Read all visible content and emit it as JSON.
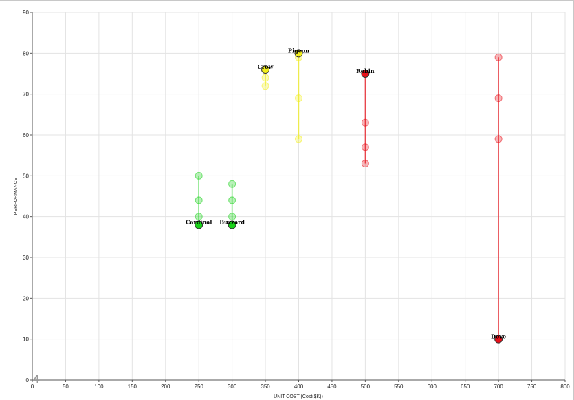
{
  "chart_data": {
    "type": "scatter",
    "title": "",
    "xlabel": "UNIT COST (Cost($K))",
    "ylabel": "PERFORMANCE",
    "xlim": [
      0,
      800
    ],
    "ylim": [
      0,
      90
    ],
    "xticks": [
      0,
      50,
      100,
      150,
      200,
      250,
      300,
      350,
      400,
      450,
      500,
      550,
      600,
      650,
      700,
      750,
      800
    ],
    "yticks": [
      0,
      10,
      20,
      30,
      40,
      50,
      60,
      70,
      80,
      90
    ],
    "grid": true,
    "legend": "none",
    "corner_mark": "4",
    "colors": {
      "green": "#19d219",
      "yellow": "#f2ee1c",
      "red": "#e8101a"
    },
    "series": [
      {
        "name": "Cardinal",
        "color": "green",
        "x": 250,
        "current": 38,
        "history": [
          50,
          44,
          40
        ],
        "line": [
          38,
          50
        ]
      },
      {
        "name": "Buzzard",
        "color": "green",
        "x": 300,
        "current": 38,
        "history": [
          48,
          44,
          40
        ],
        "line": [
          38,
          48
        ]
      },
      {
        "name": "Crow",
        "color": "yellow",
        "x": 350,
        "current": 76,
        "history": [
          74,
          72
        ],
        "line": [
          72,
          76
        ]
      },
      {
        "name": "Pigeon",
        "color": "yellow",
        "x": 400,
        "current": 80,
        "history": [
          79,
          69,
          59
        ],
        "line": [
          59,
          80
        ]
      },
      {
        "name": "Robin",
        "color": "red",
        "x": 500,
        "current": 75,
        "history": [
          63,
          57,
          53
        ],
        "line": [
          53,
          75
        ]
      },
      {
        "name": "Dove",
        "color": "red",
        "x": 700,
        "current": 10,
        "history": [
          79,
          69,
          59
        ],
        "line": [
          10,
          79
        ]
      }
    ]
  }
}
